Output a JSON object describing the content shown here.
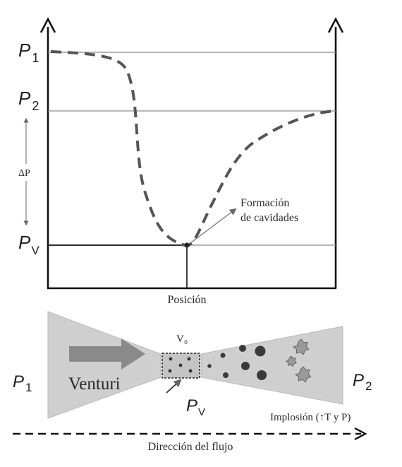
{
  "graph": {
    "labels": {
      "p1": {
        "main": "P",
        "sub": "1"
      },
      "p2": {
        "main": "P",
        "sub": "2"
      },
      "pv": {
        "main": "P",
        "sub": "V"
      },
      "delta_p": "ΔP",
      "xaxis": "Posición",
      "annotation_line1": "Formación",
      "annotation_line2": "de cavidades"
    },
    "curve": {
      "type": "pressure-profile",
      "line_style": "dashed",
      "levels": [
        "P1",
        "P2",
        "PV"
      ]
    }
  },
  "venturi": {
    "inlet": {
      "main": "P",
      "sub": "1"
    },
    "outlet": {
      "main": "P",
      "sub": "2"
    },
    "throat_pressure": {
      "main": "P",
      "sub": "V"
    },
    "throat_volume": "V₀",
    "tube_label": "Venturi",
    "implosion": "Implosión (↑T y P)",
    "flow_direction": "Dirección del flujo"
  },
  "colors": {
    "axis": "#111111",
    "reference_line": "#8c8c8c",
    "curve": "#555555",
    "cone_fill": "#cfcfcf",
    "arrow_fill": "#8a8a8a",
    "bubble": "#3a3a3a",
    "star": "#9a9a9a"
  }
}
